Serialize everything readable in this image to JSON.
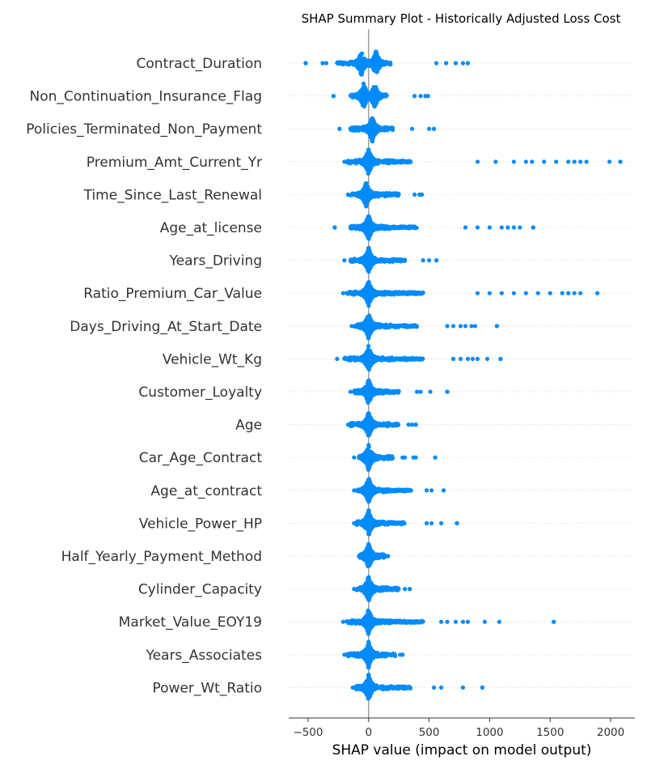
{
  "chart_data": {
    "type": "scatter",
    "subtype": "shap-beeswarm",
    "title": "SHAP Summary Plot - Historically Adjusted Loss Cost",
    "xlabel": "SHAP value (impact on model output)",
    "ylabel": "",
    "xlim": [
      -660,
      2200
    ],
    "xticks": [
      -500,
      0,
      500,
      1000,
      1500,
      2000
    ],
    "xtick_labels": [
      "−500",
      "0",
      "500",
      "1000",
      "1500",
      "2000"
    ],
    "grid": false,
    "legend": "none",
    "point_color": "#008bfb",
    "zero_line_color": "#999999",
    "features": [
      {
        "name": "Contract_Duration",
        "range": [
          -520,
          820
        ],
        "dense_range": [
          -260,
          180
        ],
        "peaks": [
          -60,
          60
        ],
        "tails": [
          -520,
          -380,
          -350,
          560,
          640,
          720,
          780,
          820
        ]
      },
      {
        "name": "Non_Continuation_Insurance_Flag",
        "range": [
          -290,
          490
        ],
        "dense_range": [
          -150,
          150
        ],
        "peaks": [
          -40,
          50
        ],
        "tails": [
          -290,
          380,
          430,
          470,
          490
        ]
      },
      {
        "name": "Policies_Terminated_Non_Payment",
        "range": [
          -240,
          540
        ],
        "dense_range": [
          -150,
          200
        ],
        "peaks": [
          30
        ],
        "tails": [
          -240,
          360,
          500,
          540
        ]
      },
      {
        "name": "Premium_Amt_Current_Yr",
        "range": [
          -200,
          2080
        ],
        "dense_range": [
          -180,
          350
        ],
        "peaks": [
          0
        ],
        "tails": [
          900,
          1050,
          1200,
          1300,
          1350,
          1450,
          1550,
          1650,
          1700,
          1750,
          1800,
          1990,
          2080
        ]
      },
      {
        "name": "Time_Since_Last_Renewal",
        "range": [
          -170,
          440
        ],
        "dense_range": [
          -150,
          250
        ],
        "peaks": [
          -20
        ],
        "tails": [
          380,
          420,
          440
        ]
      },
      {
        "name": "Age_at_license",
        "range": [
          -280,
          1360
        ],
        "dense_range": [
          -150,
          400
        ],
        "peaks": [
          0
        ],
        "tails": [
          -280,
          800,
          900,
          1000,
          1100,
          1150,
          1200,
          1250,
          1360
        ]
      },
      {
        "name": "Years_Driving",
        "range": [
          -200,
          560
        ],
        "dense_range": [
          -150,
          300
        ],
        "peaks": [
          0
        ],
        "tails": [
          450,
          500,
          560
        ]
      },
      {
        "name": "Ratio_Premium_Car_Value",
        "range": [
          -210,
          1890
        ],
        "dense_range": [
          -180,
          450
        ],
        "peaks": [
          0
        ],
        "tails": [
          900,
          1000,
          1100,
          1200,
          1300,
          1400,
          1500,
          1600,
          1650,
          1700,
          1750,
          1890
        ]
      },
      {
        "name": "Days_Driving_At_Start_Date",
        "range": [
          -140,
          1060
        ],
        "dense_range": [
          -120,
          400
        ],
        "peaks": [
          0
        ],
        "tails": [
          650,
          700,
          760,
          800,
          850,
          880,
          1060
        ]
      },
      {
        "name": "Vehicle_Wt_Kg",
        "range": [
          -260,
          1090
        ],
        "dense_range": [
          -200,
          450
        ],
        "peaks": [
          0
        ],
        "tails": [
          700,
          760,
          820,
          860,
          900,
          980,
          1090
        ]
      },
      {
        "name": "Customer_Loyalty",
        "range": [
          -150,
          650
        ],
        "dense_range": [
          -120,
          250
        ],
        "peaks": [
          0
        ],
        "tails": [
          400,
          430,
          510,
          650
        ]
      },
      {
        "name": "Age",
        "range": [
          -170,
          390
        ],
        "dense_range": [
          -150,
          250
        ],
        "peaks": [
          0
        ],
        "tails": [
          330,
          360,
          390
        ]
      },
      {
        "name": "Car_Age_Contract",
        "range": [
          -120,
          550
        ],
        "dense_range": [
          -80,
          200
        ],
        "peaks": [
          0
        ],
        "tails": [
          280,
          300,
          370,
          390,
          550
        ]
      },
      {
        "name": "Age_at_contract",
        "range": [
          -120,
          620
        ],
        "dense_range": [
          -100,
          350
        ],
        "peaks": [
          0
        ],
        "tails": [
          480,
          520,
          620
        ]
      },
      {
        "name": "Vehicle_Power_HP",
        "range": [
          -120,
          730
        ],
        "dense_range": [
          -100,
          300
        ],
        "peaks": [
          0
        ],
        "tails": [
          480,
          520,
          600,
          730
        ]
      },
      {
        "name": "Half_Yearly_Payment_Method",
        "range": [
          -80,
          160
        ],
        "dense_range": [
          -70,
          140
        ],
        "peaks": [
          0
        ],
        "tails": [
          160
        ]
      },
      {
        "name": "Cylinder_Capacity",
        "range": [
          -120,
          340
        ],
        "dense_range": [
          -100,
          250
        ],
        "peaks": [
          0
        ],
        "tails": [
          300,
          340
        ]
      },
      {
        "name": "Market_Value_EOY19",
        "range": [
          -210,
          1530
        ],
        "dense_range": [
          -180,
          450
        ],
        "peaks": [
          0
        ],
        "tails": [
          600,
          650,
          720,
          780,
          820,
          960,
          1080,
          1530
        ]
      },
      {
        "name": "Years_Associates",
        "range": [
          -200,
          280
        ],
        "dense_range": [
          -180,
          220
        ],
        "peaks": [
          0
        ],
        "tails": [
          260,
          280
        ]
      },
      {
        "name": "Power_Wt_Ratio",
        "range": [
          -130,
          940
        ],
        "dense_range": [
          -110,
          350
        ],
        "peaks": [
          0
        ],
        "tails": [
          540,
          600,
          780,
          940
        ]
      }
    ]
  }
}
